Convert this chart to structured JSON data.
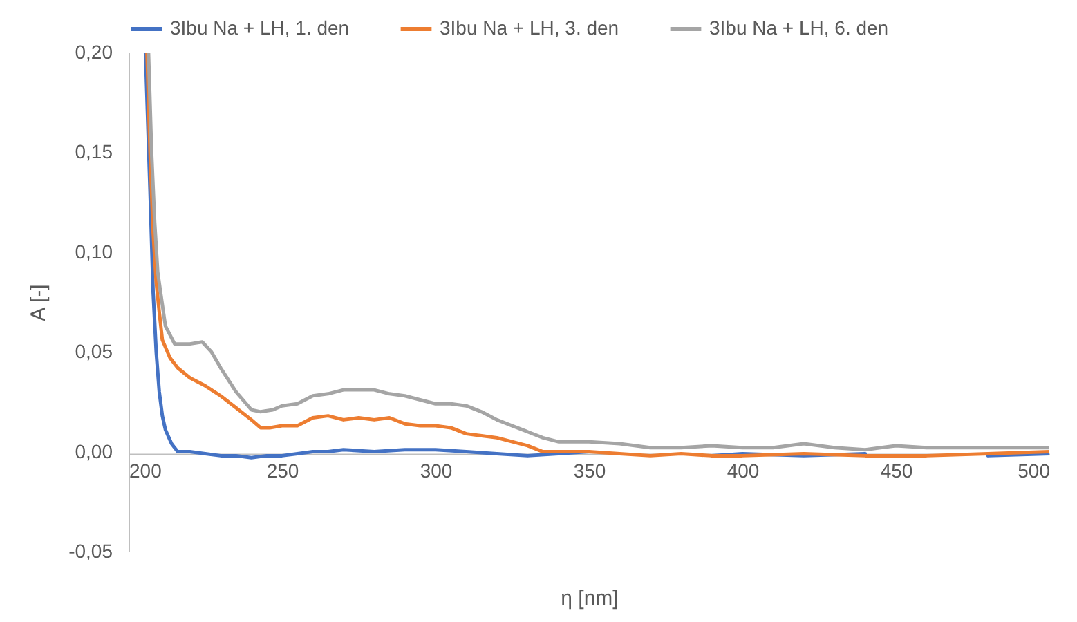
{
  "chart_data": {
    "type": "line",
    "xlabel": "η [nm]",
    "ylabel": "A [-]",
    "xlim": [
      200,
      500
    ],
    "ylim": [
      -0.05,
      0.2
    ],
    "xticks": [
      200,
      250,
      300,
      350,
      400,
      450,
      500
    ],
    "yticks": [
      {
        "value": -0.05,
        "label": "-0,05"
      },
      {
        "value": 0,
        "label": "0,00"
      },
      {
        "value": 0.05,
        "label": "0,05"
      },
      {
        "value": 0.1,
        "label": "0,10"
      },
      {
        "value": 0.15,
        "label": "0,15"
      },
      {
        "value": 0.2,
        "label": "0,20"
      }
    ],
    "legend": "top",
    "grid": false,
    "line_style": "solid",
    "marker": "none",
    "series": [
      {
        "name": "3Ibu Na + LH, 1. den",
        "color": "#4472c4",
        "x": [
          205.5,
          207,
          208,
          209,
          210,
          211,
          212,
          214,
          216,
          220,
          225,
          230,
          235,
          240,
          245,
          250,
          255,
          260,
          265,
          270,
          280,
          290,
          300,
          310,
          320,
          330,
          340,
          350,
          360,
          370,
          380,
          390,
          400,
          420,
          440,
          460,
          480,
          500
        ],
        "values": [
          0.2,
          0.13,
          0.08,
          0.05,
          0.03,
          0.018,
          0.011,
          0.004,
          0.0,
          0.0,
          -0.001,
          -0.002,
          -0.002,
          -0.003,
          -0.002,
          -0.002,
          -0.001,
          0.0,
          0.0,
          0.001,
          0.0,
          0.001,
          0.001,
          0.0,
          -0.001,
          -0.002,
          -0.001,
          0.0,
          null,
          null,
          null,
          -0.002,
          -0.001,
          -0.002,
          -0.001,
          null,
          -0.002,
          -0.001
        ]
      },
      {
        "name": "3Ibu Na + LH, 3. den",
        "color": "#ed7d31",
        "x": [
          206,
          207,
          208,
          209,
          210,
          211,
          213.5,
          216,
          220,
          225,
          230,
          235,
          240,
          243,
          246,
          250,
          255,
          260,
          265,
          270,
          275,
          280,
          285,
          290,
          295,
          300,
          305,
          310,
          315,
          320,
          325,
          330,
          335,
          340,
          350,
          360,
          370,
          380,
          390,
          400,
          420,
          440,
          460,
          480,
          500
        ],
        "values": [
          0.2,
          0.15,
          0.11,
          0.085,
          0.07,
          0.056,
          0.047,
          0.042,
          0.037,
          0.033,
          0.028,
          0.022,
          0.016,
          0.012,
          0.012,
          0.013,
          0.013,
          0.017,
          0.018,
          0.016,
          0.017,
          0.016,
          0.017,
          0.014,
          0.013,
          0.013,
          0.012,
          0.009,
          0.008,
          0.007,
          0.005,
          0.003,
          0.0,
          0.0,
          0.0,
          -0.001,
          -0.002,
          -0.001,
          -0.002,
          -0.002,
          -0.001,
          -0.002,
          -0.002,
          -0.001,
          0.0
        ]
      },
      {
        "name": "3Ibu Na + LH, 6. den",
        "color": "#a5a5a5",
        "x": [
          206.5,
          207.5,
          208.5,
          209.5,
          210.5,
          212,
          215,
          220,
          224,
          227,
          230,
          235,
          240,
          243,
          247,
          250,
          255,
          260,
          265,
          270,
          275,
          280,
          285,
          290,
          295,
          300,
          305,
          310,
          315,
          320,
          325,
          330,
          335,
          340,
          350,
          360,
          370,
          380,
          390,
          400,
          410,
          420,
          430,
          440,
          450,
          460,
          480,
          500
        ],
        "values": [
          0.2,
          0.15,
          0.115,
          0.09,
          0.079,
          0.063,
          0.054,
          0.054,
          0.055,
          0.05,
          0.042,
          0.03,
          0.021,
          0.02,
          0.021,
          0.023,
          0.024,
          0.028,
          0.029,
          0.031,
          0.031,
          0.031,
          0.029,
          0.028,
          0.026,
          0.024,
          0.024,
          0.023,
          0.02,
          0.016,
          0.013,
          0.01,
          0.007,
          0.005,
          0.005,
          0.004,
          0.002,
          0.002,
          0.003,
          0.002,
          0.002,
          0.004,
          0.002,
          0.001,
          0.003,
          0.002,
          0.002,
          0.002
        ]
      }
    ]
  }
}
